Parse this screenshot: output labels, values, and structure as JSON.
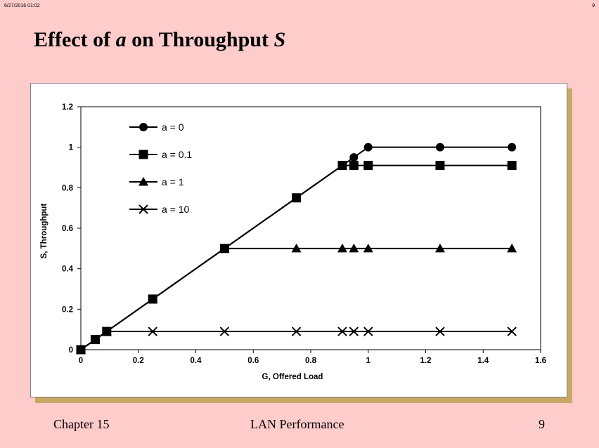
{
  "header": {
    "stamp": "6/27/2016 01:02",
    "page_number_top": "9",
    "title_prefix": "Effect of ",
    "title_var_a": "a",
    "title_middle": " on Throughput ",
    "title_var_s": "S"
  },
  "footer": {
    "chapter": "Chapter 15",
    "topic": "LAN Performance",
    "page": "9"
  },
  "chart_data": {
    "type": "line",
    "title": "",
    "xlabel": "G, Offered Load",
    "ylabel": "S, Throughput",
    "xlim": [
      0,
      1.6
    ],
    "ylim": [
      0,
      1.2
    ],
    "xticks": [
      0,
      0.2,
      0.4,
      0.6,
      0.8,
      1,
      1.2,
      1.4,
      1.6
    ],
    "yticks": [
      0,
      0.2,
      0.4,
      0.6,
      0.8,
      1,
      1.2
    ],
    "grid": false,
    "legend_position": "top-left",
    "line_color": "#000000",
    "series": [
      {
        "name": "a = 0",
        "marker": "circle",
        "x": [
          0,
          0.05,
          0.09,
          0.25,
          0.5,
          0.75,
          0.91,
          0.95,
          1,
          1.25,
          1.5
        ],
        "y": [
          0,
          0.05,
          0.09,
          0.25,
          0.5,
          0.75,
          0.91,
          0.95,
          1,
          1.0,
          1.0
        ]
      },
      {
        "name": "a = 0.1",
        "marker": "square",
        "x": [
          0,
          0.05,
          0.09,
          0.25,
          0.5,
          0.75,
          0.91,
          0.95,
          1,
          1.25,
          1.5
        ],
        "y": [
          0,
          0.05,
          0.09,
          0.25,
          0.5,
          0.75,
          0.91,
          0.91,
          0.91,
          0.91,
          0.91
        ]
      },
      {
        "name": "a = 1",
        "marker": "triangle",
        "x": [
          0,
          0.05,
          0.09,
          0.25,
          0.5,
          0.75,
          0.91,
          0.95,
          1,
          1.25,
          1.5
        ],
        "y": [
          0,
          0.05,
          0.09,
          0.25,
          0.5,
          0.5,
          0.5,
          0.5,
          0.5,
          0.5,
          0.5
        ]
      },
      {
        "name": "a = 10",
        "marker": "x",
        "x": [
          0,
          0.05,
          0.09,
          0.25,
          0.5,
          0.75,
          0.91,
          0.95,
          1,
          1.25,
          1.5
        ],
        "y": [
          0,
          0.05,
          0.09,
          0.09,
          0.09,
          0.09,
          0.09,
          0.09,
          0.09,
          0.09,
          0.09
        ]
      }
    ]
  }
}
